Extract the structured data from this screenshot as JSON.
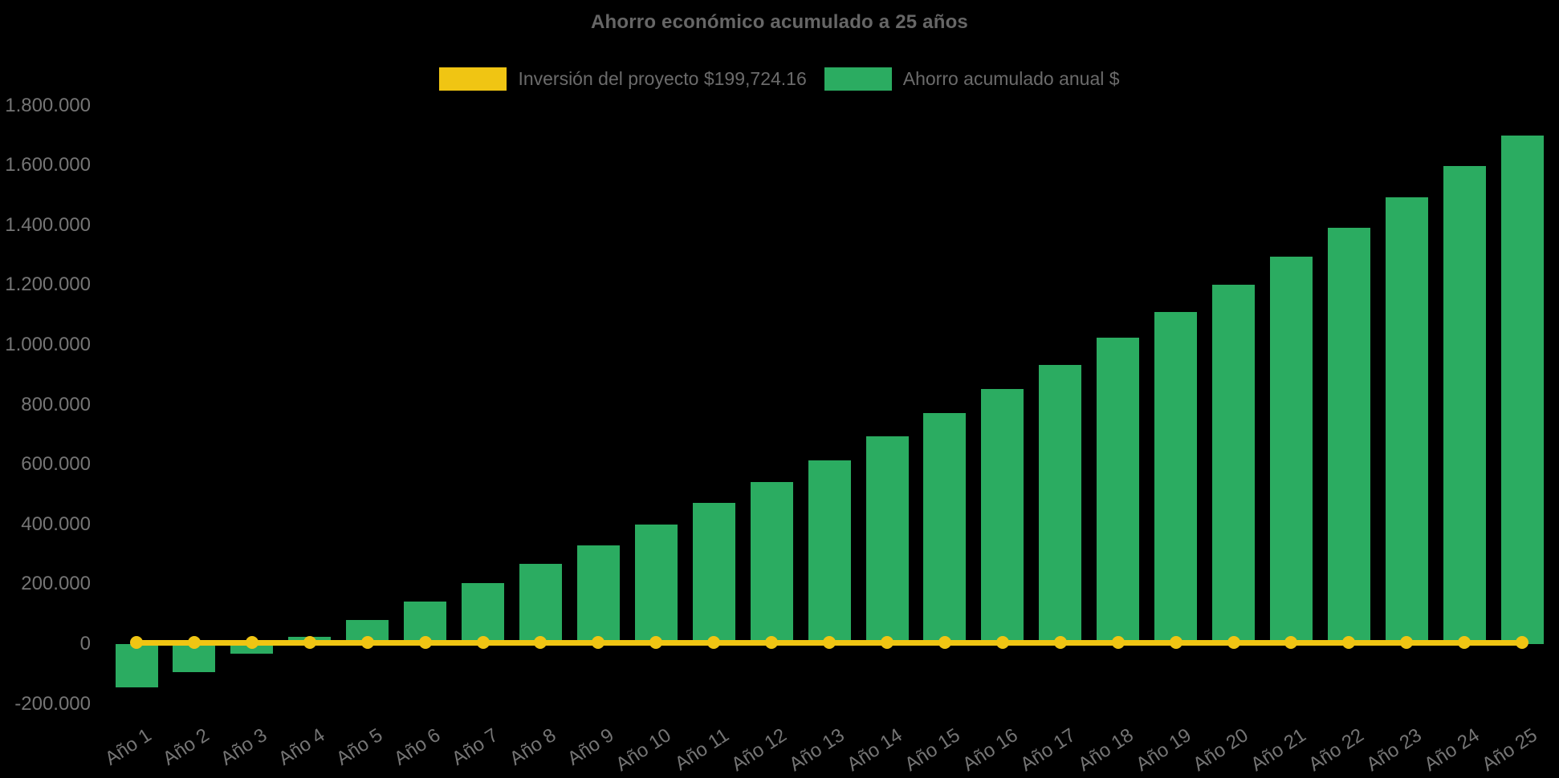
{
  "title": "Ahorro económico acumulado a 25 años",
  "legend": {
    "items": [
      {
        "label": "Inversión del proyecto $199,724.16",
        "color": "#f0c513",
        "series": "line"
      },
      {
        "label": "Ahorro acumulado anual $",
        "color": "#2bac61",
        "series": "bar"
      }
    ]
  },
  "colors": {
    "background": "#000000",
    "bar_green": "#2bac61",
    "line_yellow": "#f0c513",
    "title_text": "#666666",
    "axis_text": "#757575"
  },
  "chart_data": {
    "type": "bar",
    "title": "Ahorro económico acumulado a 25 años",
    "xlabel": "",
    "ylabel": "",
    "ylim": [
      -200000,
      1800000
    ],
    "grid": false,
    "legend_position": "top",
    "categories": [
      "Año 1",
      "Año 2",
      "Año 3",
      "Año 4",
      "Año 5",
      "Año 6",
      "Año 7",
      "Año 8",
      "Año 9",
      "Año 10",
      "Año 11",
      "Año 12",
      "Año 13",
      "Año 14",
      "Año 15",
      "Año 16",
      "Año 17",
      "Año 18",
      "Año 19",
      "Año 20",
      "Año 21",
      "Año 22",
      "Año 23",
      "Año 24",
      "Año 25"
    ],
    "series": [
      {
        "name": "Ahorro acumulado anual $",
        "type": "bar",
        "color": "#2bac61",
        "values": [
          -144000,
          -94000,
          -31000,
          23000,
          80000,
          142000,
          204000,
          268000,
          330000,
          400000,
          472000,
          542000,
          615000,
          694000,
          773000,
          853000,
          934000,
          1025000,
          1111000,
          1200000,
          1294000,
          1391000,
          1493000,
          1597000,
          1700000
        ]
      },
      {
        "name": "Inversión del proyecto $199,724.16",
        "type": "line",
        "color": "#f0c513",
        "marker": "circle",
        "values": [
          0,
          0,
          0,
          0,
          0,
          0,
          0,
          0,
          0,
          0,
          0,
          0,
          0,
          0,
          0,
          0,
          0,
          0,
          0,
          0,
          0,
          0,
          0,
          0,
          0
        ]
      }
    ],
    "y_ticks": [
      {
        "value": 1800000,
        "label": "1.800.000"
      },
      {
        "value": 1600000,
        "label": "1.600.000"
      },
      {
        "value": 1400000,
        "label": "1.400.000"
      },
      {
        "value": 1200000,
        "label": "1.200.000"
      },
      {
        "value": 1000000,
        "label": "1.000.000"
      },
      {
        "value": 800000,
        "label": "800.000"
      },
      {
        "value": 600000,
        "label": "600.000"
      },
      {
        "value": 400000,
        "label": "400.000"
      },
      {
        "value": 200000,
        "label": "200.000"
      },
      {
        "value": 0,
        "label": "0"
      },
      {
        "value": -200000,
        "label": "-200.000"
      }
    ]
  },
  "layout_note_values_are_visual_estimates": "bar values read from axis scale"
}
